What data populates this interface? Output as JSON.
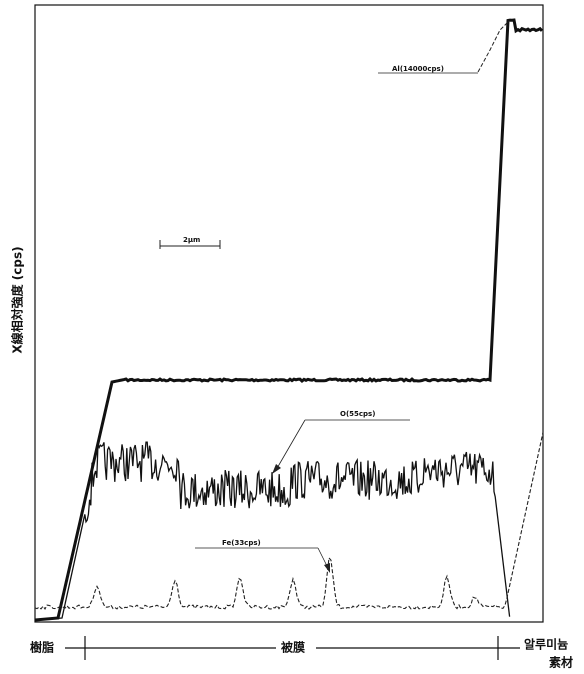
{
  "chart_data": {
    "type": "line",
    "y_label": "X線相対強度 (cps)",
    "annotations": [
      "Al(14000cps)",
      "O(55cps)",
      "Fe(33cps)"
    ],
    "scale_label": "2μm",
    "regions": [
      "樹脂",
      "被膜",
      "알루미늄",
      "素材"
    ]
  }
}
